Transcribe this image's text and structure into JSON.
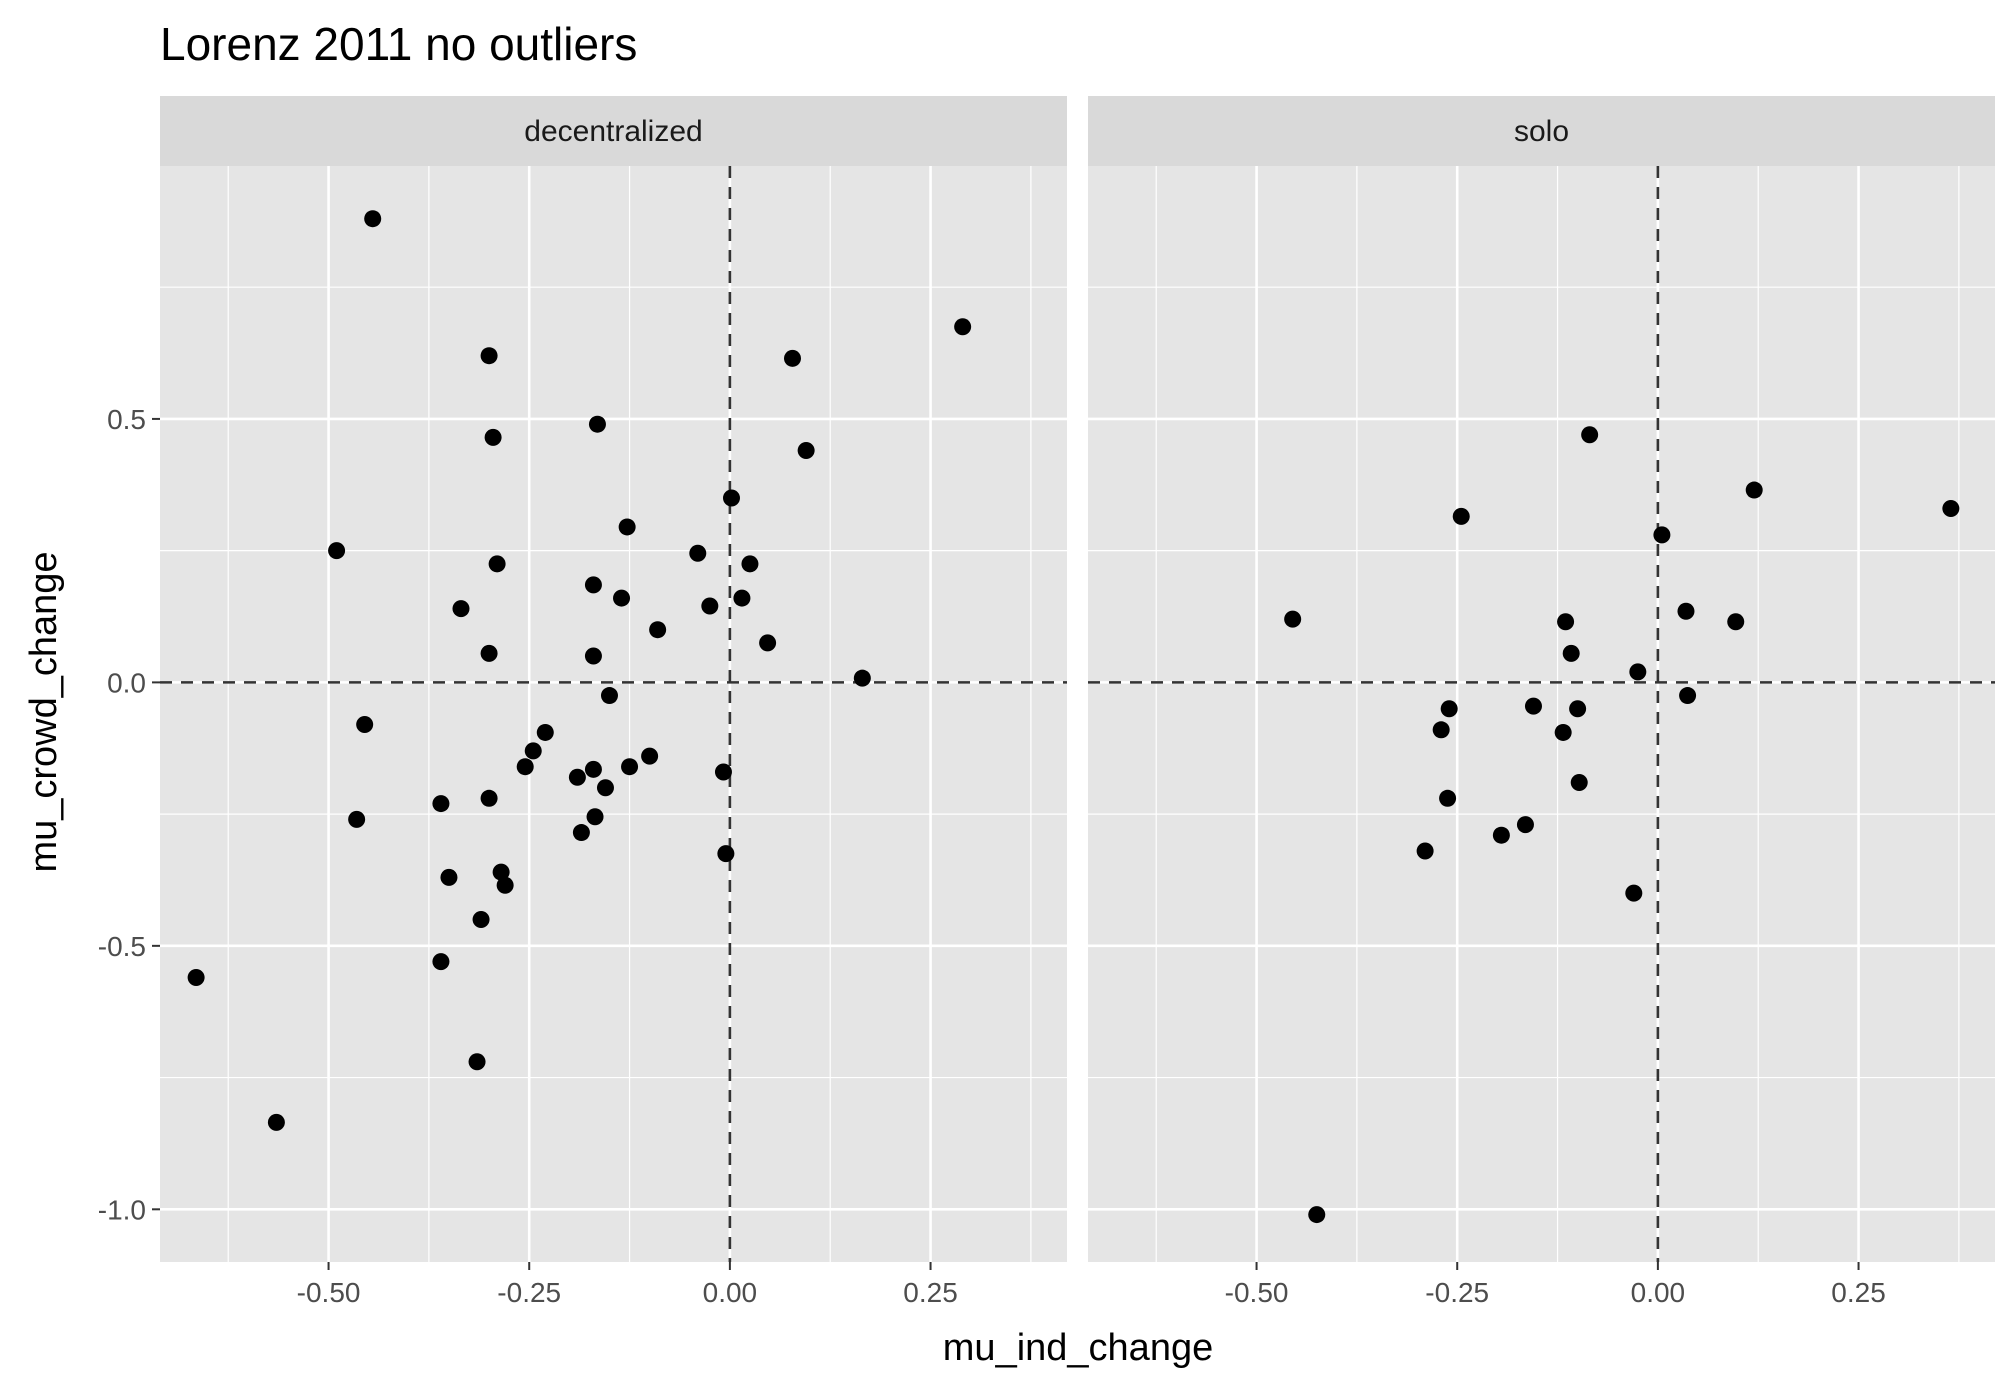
{
  "chart_data": {
    "type": "scatter",
    "title": "Lorenz 2011 no outliers",
    "xlabel": "mu_ind_change",
    "ylabel": "mu_crowd_change",
    "xlim": [
      -0.71,
      0.42
    ],
    "ylim": [
      -1.1,
      0.98
    ],
    "x_ticks": [
      -0.5,
      -0.25,
      0.0,
      0.25
    ],
    "x_tick_labels": [
      "-0.50",
      "-0.25",
      "0.00",
      "0.25"
    ],
    "y_ticks": [
      -1.0,
      -0.5,
      0.0,
      0.5
    ],
    "y_tick_labels": [
      "-1.0",
      "-0.5",
      "0.0",
      "0.5"
    ],
    "reference_lines": {
      "x": 0,
      "y": 0,
      "style": "dashed"
    },
    "grid": true,
    "colors": {
      "panel_bg": "#e5e5e5",
      "strip_bg": "#d9d9d9",
      "grid": "#ffffff",
      "point": "#000000",
      "refline": "#333333"
    },
    "facets": [
      {
        "label": "decentralized",
        "points": [
          [
            -0.445,
            0.88
          ],
          [
            -0.3,
            0.62
          ],
          [
            -0.295,
            0.465
          ],
          [
            -0.165,
            0.49
          ],
          [
            -0.49,
            0.25
          ],
          [
            -0.29,
            0.225
          ],
          [
            -0.335,
            0.14
          ],
          [
            -0.3,
            0.055
          ],
          [
            -0.455,
            -0.08
          ],
          [
            -0.465,
            -0.26
          ],
          [
            -0.36,
            -0.23
          ],
          [
            -0.35,
            -0.37
          ],
          [
            -0.3,
            -0.22
          ],
          [
            -0.285,
            -0.36
          ],
          [
            -0.28,
            -0.385
          ],
          [
            -0.31,
            -0.45
          ],
          [
            -0.36,
            -0.53
          ],
          [
            -0.315,
            -0.72
          ],
          [
            -0.565,
            -0.835
          ],
          [
            -0.665,
            -0.56
          ],
          [
            -0.255,
            -0.16
          ],
          [
            -0.245,
            -0.13
          ],
          [
            -0.23,
            -0.095
          ],
          [
            -0.19,
            -0.18
          ],
          [
            -0.185,
            -0.285
          ],
          [
            -0.17,
            -0.165
          ],
          [
            -0.168,
            -0.255
          ],
          [
            -0.155,
            -0.2
          ],
          [
            -0.125,
            -0.16
          ],
          [
            -0.1,
            -0.14
          ],
          [
            -0.17,
            0.185
          ],
          [
            -0.17,
            0.05
          ],
          [
            -0.15,
            -0.025
          ],
          [
            -0.135,
            0.16
          ],
          [
            -0.128,
            0.295
          ],
          [
            -0.09,
            0.1
          ],
          [
            -0.04,
            0.245
          ],
          [
            -0.025,
            0.145
          ],
          [
            0.002,
            0.35
          ],
          [
            0.025,
            0.225
          ],
          [
            0.015,
            0.16
          ],
          [
            0.047,
            0.075
          ],
          [
            0.078,
            0.615
          ],
          [
            0.095,
            0.44
          ],
          [
            0.165,
            0.008
          ],
          [
            0.29,
            0.675
          ],
          [
            -0.008,
            -0.17
          ],
          [
            -0.005,
            -0.325
          ]
        ]
      },
      {
        "label": "solo",
        "points": [
          [
            -0.455,
            0.12
          ],
          [
            -0.245,
            0.315
          ],
          [
            -0.085,
            0.47
          ],
          [
            0.005,
            0.28
          ],
          [
            0.12,
            0.365
          ],
          [
            0.365,
            0.33
          ],
          [
            0.035,
            0.135
          ],
          [
            0.097,
            0.115
          ],
          [
            -0.115,
            0.115
          ],
          [
            -0.108,
            0.055
          ],
          [
            -0.025,
            0.02
          ],
          [
            0.037,
            -0.025
          ],
          [
            -0.26,
            -0.05
          ],
          [
            -0.155,
            -0.045
          ],
          [
            -0.1,
            -0.05
          ],
          [
            -0.27,
            -0.09
          ],
          [
            -0.118,
            -0.095
          ],
          [
            -0.262,
            -0.22
          ],
          [
            -0.098,
            -0.19
          ],
          [
            -0.195,
            -0.29
          ],
          [
            -0.165,
            -0.27
          ],
          [
            -0.29,
            -0.32
          ],
          [
            -0.03,
            -0.4
          ],
          [
            -0.425,
            -1.01
          ]
        ]
      }
    ]
  }
}
